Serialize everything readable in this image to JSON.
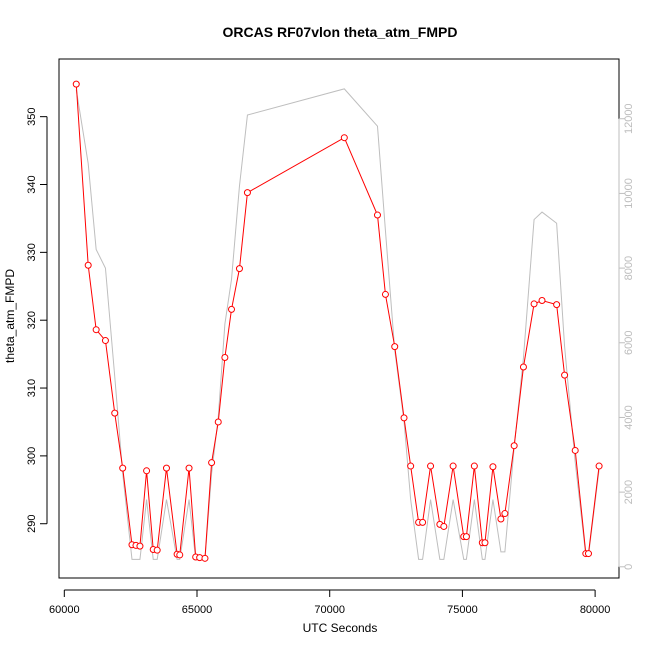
{
  "chart_data": {
    "type": "line",
    "title": "ORCAS RF07vlon theta_atm_FMPD",
    "xlabel": "UTC Seconds",
    "ylabel": "theta_atm_FMPD",
    "xlim": [
      59800,
      80900
    ],
    "ylim": [
      282,
      358.5
    ],
    "y2lim": [
      -300,
      13600
    ],
    "x_ticks": [
      60000,
      65000,
      70000,
      75000,
      80000
    ],
    "y_ticks": [
      290,
      300,
      310,
      320,
      330,
      340,
      350
    ],
    "y2_ticks": [
      0,
      2000,
      4000,
      6000,
      8000,
      10000,
      12000
    ],
    "grid": false,
    "colors": {
      "primary": "#ff0000",
      "secondary": "#bebebe",
      "axis": "#000000"
    },
    "series": [
      {
        "role": "primary",
        "style": "line+open-circles",
        "x": [
          60450,
          60900,
          61200,
          61550,
          61900,
          62200,
          62550,
          62700,
          62850,
          63100,
          63350,
          63500,
          63850,
          64250,
          64350,
          64700,
          64950,
          65100,
          65300,
          65550,
          65800,
          66050,
          66300,
          66600,
          66900,
          70550,
          71800,
          72100,
          72450,
          72800,
          73050,
          73350,
          73500,
          73800,
          74150,
          74300,
          74650,
          75050,
          75150,
          75450,
          75750,
          75850,
          76150,
          76450,
          76600,
          76950,
          77300,
          77700,
          78000,
          78550,
          78850,
          79250,
          79650,
          79750,
          80150
        ],
        "y": [
          354.8,
          328.1,
          318.6,
          317.0,
          306.3,
          298.2,
          286.9,
          286.8,
          286.7,
          297.8,
          286.2,
          286.1,
          298.2,
          285.5,
          285.4,
          298.2,
          285.1,
          285.0,
          284.9,
          299.0,
          305.0,
          314.5,
          321.6,
          327.6,
          338.8,
          346.9,
          335.5,
          323.8,
          316.1,
          305.6,
          298.5,
          290.2,
          290.2,
          298.5,
          289.9,
          289.6,
          298.5,
          288.1,
          288.1,
          298.5,
          287.2,
          287.2,
          298.4,
          290.7,
          291.5,
          301.5,
          313.1,
          322.4,
          322.9,
          322.3,
          311.9,
          300.8,
          285.6,
          285.6,
          298.5
        ]
      },
      {
        "role": "secondary",
        "style": "line",
        "x": [
          60450,
          60900,
          61200,
          61550,
          61900,
          62200,
          62550,
          62700,
          62850,
          63100,
          63350,
          63500,
          63850,
          64250,
          64350,
          64700,
          64950,
          65100,
          65300,
          65550,
          65800,
          66050,
          66300,
          66600,
          66900,
          70550,
          71800,
          72100,
          72450,
          72800,
          73050,
          73350,
          73500,
          73800,
          74150,
          74300,
          74650,
          75050,
          75150,
          75450,
          75750,
          75850,
          76150,
          76450,
          76600,
          76950,
          77300,
          77700,
          78000,
          78550,
          78850,
          79250,
          79650,
          79750,
          80150
        ],
        "y": [
          12780,
          10800,
          8500,
          8000,
          5100,
          2500,
          200,
          200,
          200,
          1800,
          200,
          200,
          1800,
          200,
          200,
          1800,
          200,
          200,
          200,
          2500,
          4000,
          6500,
          7700,
          10200,
          12100,
          12800,
          11800,
          9000,
          5800,
          3900,
          1800,
          200,
          200,
          1800,
          200,
          200,
          1800,
          200,
          200,
          1800,
          200,
          200,
          1800,
          400,
          400,
          3200,
          5600,
          9300,
          9500,
          9200,
          5900,
          2800,
          300,
          300,
          2600
        ]
      }
    ]
  }
}
